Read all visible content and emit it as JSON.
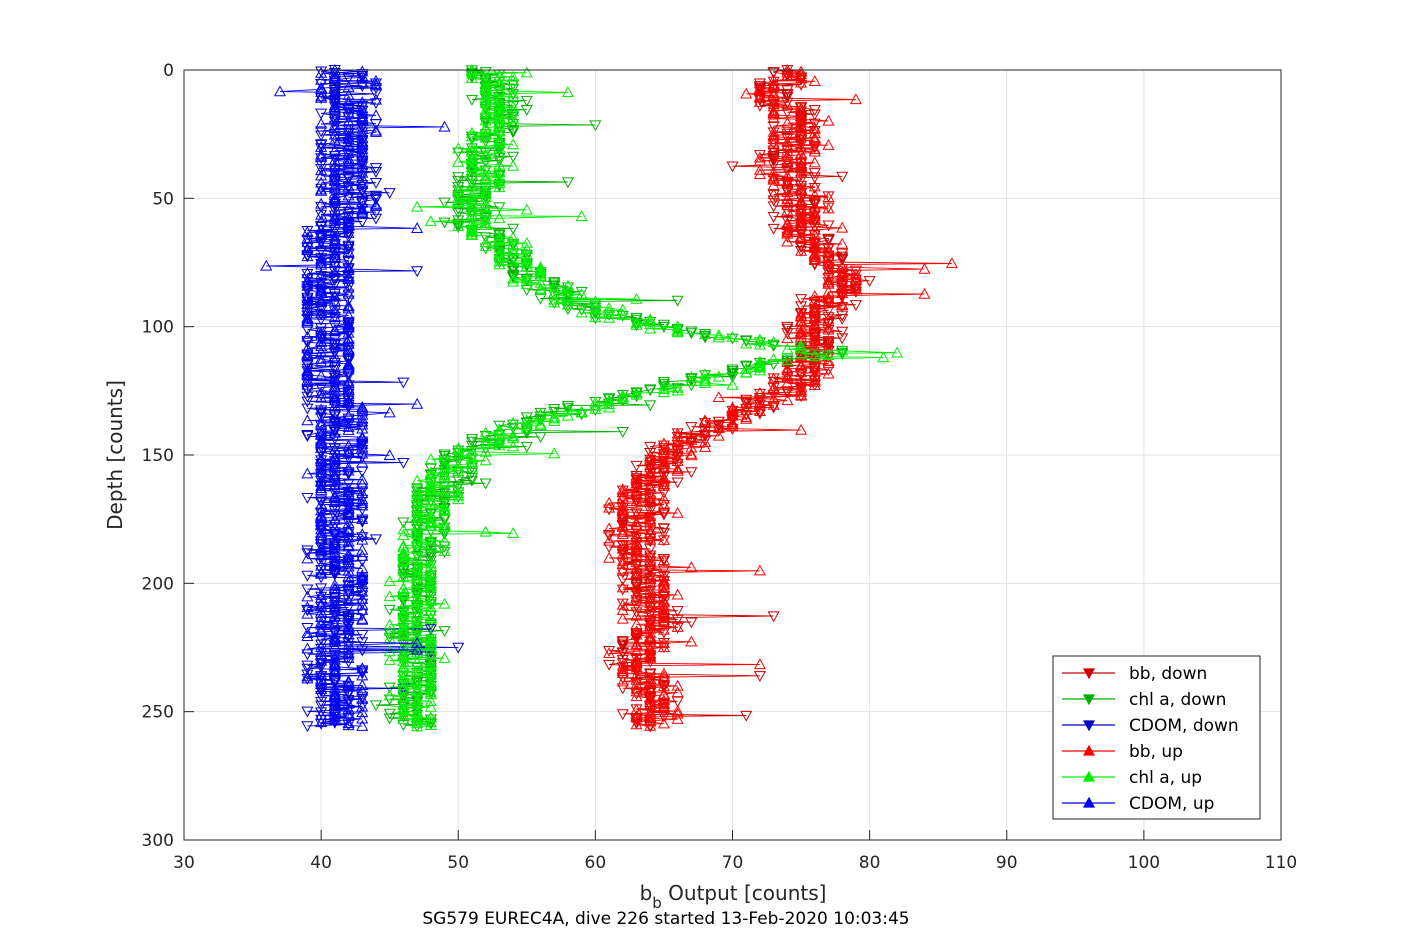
{
  "chart_data": {
    "type": "line",
    "title": "",
    "caption": "SG579 EUREC4A, dive 226 started 13-Feb-2020 10:03:45",
    "xlabel_main": "b",
    "xlabel_sub": "b",
    "xlabel_rest": " Output [counts]",
    "ylabel": "Depth [counts]",
    "xlim": [
      30,
      110
    ],
    "ylim": [
      0,
      300
    ],
    "y_reversed": true,
    "grid": true,
    "legend_position": "bottom-right",
    "x_ticks": [
      "30",
      "40",
      "50",
      "60",
      "70",
      "80",
      "90",
      "100",
      "110"
    ],
    "y_ticks": [
      "0",
      "50",
      "100",
      "150",
      "200",
      "250",
      "300"
    ],
    "profiles": {
      "bb": [
        [
          75,
          0
        ],
        [
          73,
          10
        ],
        [
          75,
          20
        ],
        [
          74,
          30
        ],
        [
          74,
          40
        ],
        [
          75,
          50
        ],
        [
          75,
          60
        ],
        [
          76,
          70
        ],
        [
          79,
          80
        ],
        [
          77,
          90
        ],
        [
          76,
          100
        ],
        [
          76,
          110
        ],
        [
          75,
          120
        ],
        [
          72,
          130
        ],
        [
          68,
          140
        ],
        [
          65,
          150
        ],
        [
          64,
          160
        ],
        [
          63,
          170
        ],
        [
          63,
          180
        ],
        [
          63,
          190
        ],
        [
          64,
          200
        ],
        [
          64,
          210
        ],
        [
          64,
          220
        ],
        [
          63,
          230
        ],
        [
          64,
          240
        ],
        [
          64,
          250
        ],
        [
          64,
          256
        ]
      ],
      "chl": [
        [
          52,
          0
        ],
        [
          53,
          10
        ],
        [
          53,
          20
        ],
        [
          52,
          30
        ],
        [
          52,
          40
        ],
        [
          51,
          50
        ],
        [
          51,
          60
        ],
        [
          54,
          70
        ],
        [
          55,
          80
        ],
        [
          58,
          90
        ],
        [
          64,
          100
        ],
        [
          77,
          110
        ],
        [
          68,
          120
        ],
        [
          60,
          130
        ],
        [
          54,
          140
        ],
        [
          50,
          150
        ],
        [
          49,
          160
        ],
        [
          48,
          170
        ],
        [
          48,
          180
        ],
        [
          47,
          190
        ],
        [
          47,
          200
        ],
        [
          47,
          210
        ],
        [
          47,
          220
        ],
        [
          47,
          230
        ],
        [
          47,
          240
        ],
        [
          47,
          250
        ],
        [
          47,
          256
        ]
      ]
    },
    "series": [
      {
        "name": "bb, down",
        "color": "#cc0000",
        "marker": "down",
        "base": "bb",
        "jitter": 1.8,
        "seed": 11
      },
      {
        "name": "chl a, down",
        "color": "#00b000",
        "marker": "down",
        "base": "chl",
        "jitter": 1.6,
        "seed": 23
      },
      {
        "name": "CDOM, down",
        "color": "#0000cc",
        "marker": "down",
        "base": "cdom",
        "jitter": 2.0,
        "seed": 37
      },
      {
        "name": "bb, up",
        "color": "#ff0000",
        "marker": "up",
        "base": "bb",
        "jitter": 1.8,
        "seed": 51
      },
      {
        "name": "chl a, up",
        "color": "#00ee00",
        "marker": "up",
        "base": "chl",
        "jitter": 1.6,
        "seed": 67
      },
      {
        "name": "CDOM, up",
        "color": "#0000ff",
        "marker": "up",
        "base": "cdom",
        "jitter": 2.0,
        "seed": 83
      }
    ]
  }
}
